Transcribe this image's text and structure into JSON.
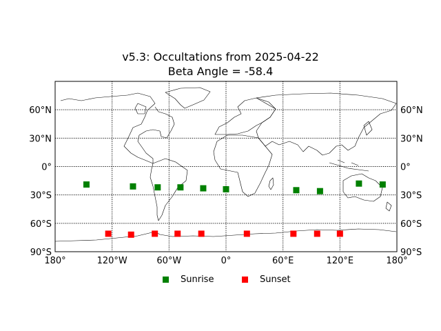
{
  "title": {
    "line1": "v5.3: Occultations from 2025-04-22",
    "line2": "Beta Angle = -58.4"
  },
  "map": {
    "projection": "equirectangular",
    "lon_range": [
      -180,
      180
    ],
    "lat_range": [
      -90,
      90
    ],
    "grid": {
      "lons": [
        -120,
        -60,
        0,
        60,
        120
      ],
      "lats": [
        -60,
        -30,
        0,
        30,
        60
      ],
      "style": "dotted"
    },
    "lon_ticks": [
      {
        "lon": -180,
        "label": "180°"
      },
      {
        "lon": -120,
        "label": "120°W"
      },
      {
        "lon": -60,
        "label": "60°W"
      },
      {
        "lon": 0,
        "label": "0°"
      },
      {
        "lon": 60,
        "label": "60°E"
      },
      {
        "lon": 120,
        "label": "120°E"
      },
      {
        "lon": 180,
        "label": "180°"
      }
    ],
    "lat_ticks": [
      {
        "lat": 60,
        "label": "60°N"
      },
      {
        "lat": 30,
        "label": "30°N"
      },
      {
        "lat": 0,
        "label": "0°"
      },
      {
        "lat": -30,
        "label": "30°S"
      },
      {
        "lat": -60,
        "label": "60°S"
      },
      {
        "lat": -90,
        "label": "90°S"
      }
    ],
    "coastline_color": "#000000",
    "land_fill": "none"
  },
  "chart_data": {
    "type": "scatter",
    "series": [
      {
        "name": "Sunrise",
        "color": "#008000",
        "marker": "square",
        "points": [
          {
            "lon": -147,
            "lat": -19
          },
          {
            "lon": -98,
            "lat": -21
          },
          {
            "lon": -72,
            "lat": -22
          },
          {
            "lon": -48,
            "lat": -22
          },
          {
            "lon": -24,
            "lat": -23
          },
          {
            "lon": 0,
            "lat": -24
          },
          {
            "lon": 74,
            "lat": -25
          },
          {
            "lon": 99,
            "lat": -26
          },
          {
            "lon": 140,
            "lat": -18
          },
          {
            "lon": 165,
            "lat": -19
          }
        ]
      },
      {
        "name": "Sunset",
        "color": "#ff0000",
        "marker": "square",
        "points": [
          {
            "lon": -124,
            "lat": -71
          },
          {
            "lon": -100,
            "lat": -72
          },
          {
            "lon": -75,
            "lat": -71
          },
          {
            "lon": -51,
            "lat": -71
          },
          {
            "lon": -26,
            "lat": -71
          },
          {
            "lon": 22,
            "lat": -71
          },
          {
            "lon": 71,
            "lat": -71
          },
          {
            "lon": 96,
            "lat": -71
          },
          {
            "lon": 120,
            "lat": -71
          }
        ]
      }
    ],
    "legend": {
      "position": "bottom-center"
    }
  }
}
